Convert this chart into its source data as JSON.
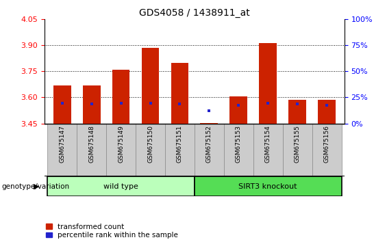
{
  "title": "GDS4058 / 1438911_at",
  "samples": [
    "GSM675147",
    "GSM675148",
    "GSM675149",
    "GSM675150",
    "GSM675151",
    "GSM675152",
    "GSM675153",
    "GSM675154",
    "GSM675155",
    "GSM675156"
  ],
  "red_values": [
    3.67,
    3.67,
    3.76,
    3.885,
    3.8,
    3.452,
    3.605,
    3.915,
    3.585,
    3.585
  ],
  "blue_values": [
    3.565,
    3.563,
    3.565,
    3.565,
    3.563,
    3.525,
    3.555,
    3.565,
    3.563,
    3.553
  ],
  "y_min": 3.45,
  "y_max": 4.05,
  "y_ticks_left": [
    3.45,
    3.6,
    3.75,
    3.9,
    4.05
  ],
  "y_ticks_right_pct": [
    0,
    25,
    50,
    75,
    100
  ],
  "bar_color": "#cc2200",
  "blue_color": "#2222cc",
  "wt_color": "#bbffbb",
  "ko_color": "#55dd55",
  "tick_bg_color": "#cccccc",
  "group_label": "genotype/variation",
  "wt_label": "wild type",
  "ko_label": "SIRT3 knockout",
  "legend_red": "transformed count",
  "legend_blue": "percentile rank within the sample",
  "bar_width": 0.6,
  "n_wt": 5,
  "n_ko": 5
}
